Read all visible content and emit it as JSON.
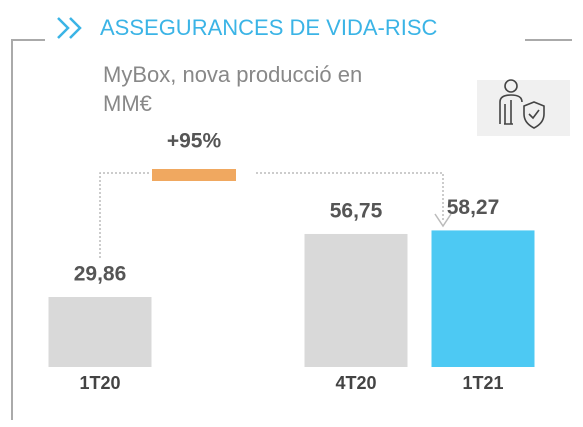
{
  "chart_data": {
    "type": "bar",
    "title": "ASSEGURANCES DE VIDA-RISC",
    "subtitle": [
      "MyBox, nova producció en",
      "MM€"
    ],
    "annotation": "+95%",
    "categories": [
      "1T20",
      "4T20",
      "1T21"
    ],
    "values": [
      29.86,
      56.75,
      58.27
    ],
    "value_labels": [
      "29,86",
      "56,75",
      "58,27"
    ],
    "colors": [
      "#d9d9d9",
      "#d9d9d9",
      "#4dc9f3"
    ]
  }
}
